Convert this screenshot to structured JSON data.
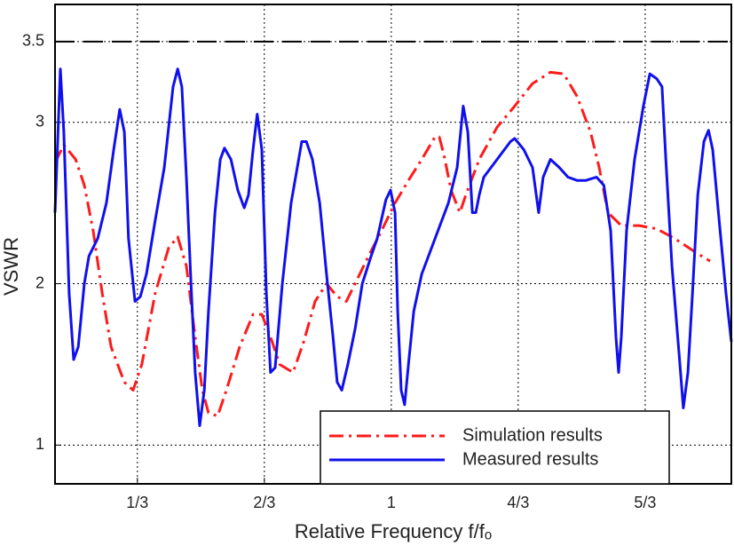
{
  "chart_data": {
    "type": "line",
    "xlabel": "Relative Frequency f/fₒ",
    "ylabel": "VSWR",
    "xlim": [
      0.117,
      1.893
    ],
    "ylim": [
      0.76,
      3.73
    ],
    "xticks": [
      {
        "value": 0.3333,
        "label": "1/3"
      },
      {
        "value": 0.6667,
        "label": "2/3"
      },
      {
        "value": 1,
        "label": "1"
      },
      {
        "value": 1.3333,
        "label": "4/3"
      },
      {
        "value": 1.6667,
        "label": "5/3"
      }
    ],
    "yticks": [
      1,
      2,
      3,
      3.5
    ],
    "grid": true,
    "hline": 3.5,
    "legend": "lower right",
    "series": [
      {
        "name": "Simulation results",
        "color": "#ff1a1a",
        "style": "dashdot",
        "x": [
          0.117,
          0.14,
          0.171,
          0.194,
          0.217,
          0.241,
          0.264,
          0.299,
          0.322,
          0.345,
          0.38,
          0.415,
          0.439,
          0.462,
          0.485,
          0.504,
          0.52,
          0.544,
          0.567,
          0.602,
          0.637,
          0.66,
          0.683,
          0.707,
          0.742,
          0.77,
          0.8,
          0.83,
          0.858,
          0.882,
          0.905,
          0.94,
          0.975,
          1.01,
          1.045,
          1.08,
          1.115,
          1.126,
          1.138,
          1.157,
          1.18,
          1.196,
          1.231,
          1.278,
          1.324,
          1.371,
          1.418,
          1.453,
          1.488,
          1.523,
          1.546,
          1.569,
          1.604,
          1.651,
          1.697,
          1.744,
          1.802,
          1.837
        ],
        "values": [
          2.75,
          2.86,
          2.77,
          2.61,
          2.33,
          1.94,
          1.61,
          1.39,
          1.34,
          1.5,
          1.94,
          2.22,
          2.29,
          2.11,
          1.67,
          1.34,
          1.2,
          1.18,
          1.34,
          1.61,
          1.81,
          1.81,
          1.67,
          1.5,
          1.45,
          1.64,
          1.89,
          2.0,
          1.92,
          1.89,
          2.0,
          2.17,
          2.33,
          2.5,
          2.64,
          2.77,
          2.91,
          2.91,
          2.8,
          2.58,
          2.44,
          2.55,
          2.77,
          2.97,
          3.1,
          3.24,
          3.31,
          3.3,
          3.16,
          2.94,
          2.72,
          2.44,
          2.36,
          2.36,
          2.34,
          2.28,
          2.19,
          2.14
        ]
      },
      {
        "name": "Measured results",
        "color": "#1010ee",
        "style": "solid",
        "x": [
          0.117,
          0.131,
          0.14,
          0.154,
          0.166,
          0.178,
          0.194,
          0.206,
          0.229,
          0.252,
          0.271,
          0.287,
          0.299,
          0.31,
          0.327,
          0.341,
          0.357,
          0.38,
          0.404,
          0.427,
          0.439,
          0.45,
          0.462,
          0.474,
          0.485,
          0.497,
          0.509,
          0.52,
          0.537,
          0.551,
          0.562,
          0.579,
          0.597,
          0.614,
          0.625,
          0.637,
          0.648,
          0.66,
          0.672,
          0.683,
          0.695,
          0.714,
          0.737,
          0.765,
          0.777,
          0.793,
          0.812,
          0.83,
          0.847,
          0.858,
          0.87,
          0.886,
          0.905,
          0.924,
          0.947,
          0.963,
          0.986,
          0.998,
          1.01,
          1.017,
          1.026,
          1.035,
          1.045,
          1.059,
          1.08,
          1.115,
          1.15,
          1.173,
          1.189,
          1.201,
          1.213,
          1.222,
          1.231,
          1.243,
          1.278,
          1.313,
          1.324,
          1.348,
          1.371,
          1.387,
          1.399,
          1.418,
          1.441,
          1.464,
          1.488,
          1.511,
          1.539,
          1.558,
          1.576,
          1.59,
          1.597,
          1.604,
          1.618,
          1.639,
          1.662,
          1.679,
          1.697,
          1.711,
          1.721,
          1.737,
          1.756,
          1.767,
          1.779,
          1.791,
          1.805,
          1.821,
          1.833,
          1.844,
          1.861,
          1.879,
          1.893
        ],
        "values": [
          2.44,
          3.33,
          2.94,
          1.94,
          1.53,
          1.61,
          2.0,
          2.17,
          2.28,
          2.5,
          2.83,
          3.08,
          2.94,
          2.28,
          1.89,
          1.92,
          2.06,
          2.39,
          2.72,
          3.22,
          3.33,
          3.22,
          2.66,
          2.0,
          1.45,
          1.12,
          1.34,
          1.83,
          2.44,
          2.77,
          2.84,
          2.77,
          2.58,
          2.47,
          2.55,
          2.83,
          3.05,
          2.83,
          1.94,
          1.45,
          1.48,
          2.0,
          2.5,
          2.88,
          2.88,
          2.77,
          2.5,
          2.06,
          1.67,
          1.39,
          1.34,
          1.5,
          1.72,
          2.0,
          2.17,
          2.28,
          2.52,
          2.58,
          2.44,
          1.83,
          1.34,
          1.25,
          1.5,
          1.83,
          2.06,
          2.28,
          2.5,
          2.72,
          3.1,
          2.94,
          2.44,
          2.44,
          2.55,
          2.66,
          2.77,
          2.88,
          2.9,
          2.83,
          2.72,
          2.44,
          2.66,
          2.77,
          2.72,
          2.66,
          2.64,
          2.64,
          2.66,
          2.61,
          2.33,
          1.67,
          1.45,
          1.67,
          2.33,
          2.77,
          3.1,
          3.3,
          3.27,
          3.22,
          2.77,
          2.11,
          1.56,
          1.23,
          1.45,
          1.94,
          2.55,
          2.88,
          2.95,
          2.83,
          2.39,
          1.94,
          1.64
        ]
      }
    ]
  }
}
